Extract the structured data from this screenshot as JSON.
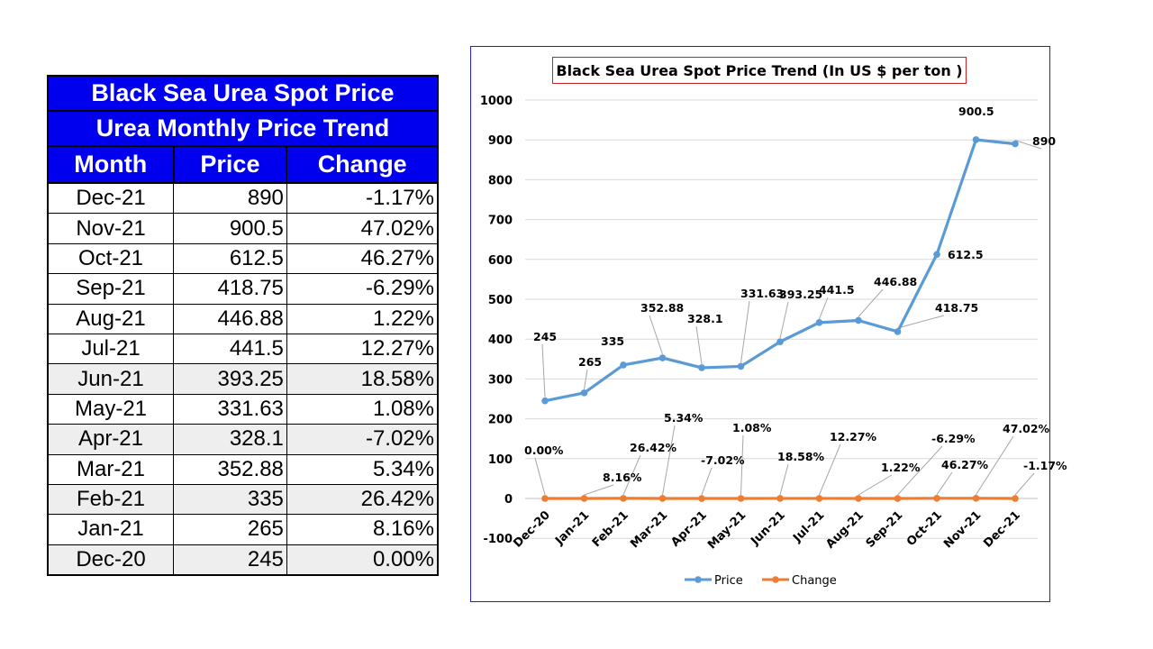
{
  "table": {
    "title": "Black Sea Urea Spot Price",
    "subtitle": "Urea Monthly Price Trend",
    "headers": [
      "Month",
      "Price",
      "Change"
    ],
    "rows": [
      [
        "Dec-21",
        "890",
        "-1.17%"
      ],
      [
        "Nov-21",
        "900.5",
        "47.02%"
      ],
      [
        "Oct-21",
        "612.5",
        "46.27%"
      ],
      [
        "Sep-21",
        "418.75",
        "-6.29%"
      ],
      [
        "Aug-21",
        "446.88",
        "1.22%"
      ],
      [
        "Jul-21",
        "441.5",
        "12.27%"
      ],
      [
        "Jun-21",
        "393.25",
        "18.58%"
      ],
      [
        "May-21",
        "331.63",
        "1.08%"
      ],
      [
        "Apr-21",
        "328.1",
        "-7.02%"
      ],
      [
        "Mar-21",
        "352.88",
        "5.34%"
      ],
      [
        "Feb-21",
        "335",
        "26.42%"
      ],
      [
        "Jan-21",
        "265",
        "8.16%"
      ],
      [
        "Dec-20",
        "245",
        "0.00%"
      ]
    ],
    "header_color": "#0000ee",
    "stripe_color": "#eeeeee"
  },
  "chart_data": {
    "type": "line",
    "title": "Black Sea Urea Spot Price Trend (In US $ per ton )",
    "categories": [
      "Dec-20",
      "Jan-21",
      "Feb-21",
      "Mar-21",
      "Apr-21",
      "May-21",
      "Jun-21",
      "Jul-21",
      "Aug-21",
      "Sep-21",
      "Oct-21",
      "Nov-21",
      "Dec-21"
    ],
    "series": [
      {
        "name": "Price",
        "color": "#5b9bd5",
        "values": [
          245,
          265,
          335,
          352.88,
          328.1,
          331.63,
          393.25,
          441.5,
          446.88,
          418.75,
          612.5,
          900.5,
          890
        ],
        "labels": [
          "245",
          "265",
          "335",
          "352.88",
          "328.1",
          "331.63",
          "393.25",
          "441.5",
          "446.88",
          "418.75",
          "612.5",
          "900.5",
          "890"
        ]
      },
      {
        "name": "Change",
        "color": "#ed7d31",
        "values": [
          0.0,
          8.16,
          26.42,
          5.34,
          -7.02,
          1.08,
          18.58,
          12.27,
          1.22,
          -6.29,
          46.27,
          47.02,
          -1.17
        ],
        "labels": [
          "0.00%",
          "8.16%",
          "26.42%",
          "5.34%",
          "-7.02%",
          "1.08%",
          "18.58%",
          "12.27%",
          "1.22%",
          "-6.29%",
          "46.27%",
          "47.02%",
          "-1.17%"
        ],
        "highlight_label_color": "#ff0000",
        "highlight_index": 9
      }
    ],
    "ylim": [
      -100,
      1000
    ],
    "yticks": [
      -100,
      0,
      100,
      200,
      300,
      400,
      500,
      600,
      700,
      800,
      900,
      1000
    ],
    "grid": true,
    "legend": "bottom"
  }
}
